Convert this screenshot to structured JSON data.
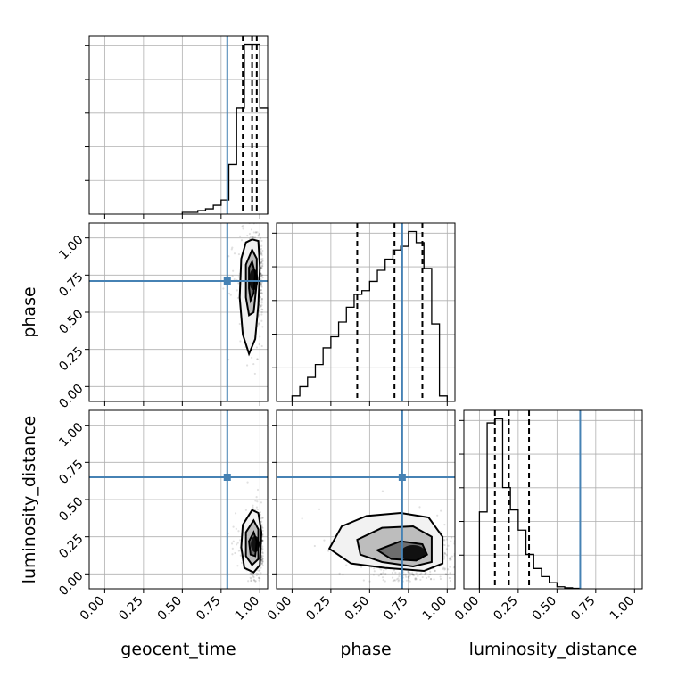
{
  "figure": {
    "type": "corner-plot"
  },
  "parameters": [
    "geocent_time",
    "phase",
    "luminosity_distance"
  ],
  "axis_labels": {
    "geocent_time": "geocent_time",
    "phase": "phase",
    "luminosity_distance": "luminosity_distance"
  },
  "tick_labels": [
    "0.00",
    "0.25",
    "0.50",
    "0.75",
    "1.00"
  ],
  "colors": {
    "truth": "#4682b4",
    "hist": "#000000",
    "grid": "#b0b0b0"
  },
  "truths": {
    "geocent_time": 0.79,
    "phase": 0.71,
    "luminosity_distance": 0.65
  },
  "chart_data": [
    {
      "type": "histogram",
      "parameter": "geocent_time",
      "xlim": [
        -0.1,
        1.05
      ],
      "grid": true,
      "bin_edges": [
        0.5,
        0.55,
        0.6,
        0.65,
        0.7,
        0.75,
        0.8,
        0.85,
        0.9,
        0.95,
        1.0,
        1.05
      ],
      "counts": [
        0.5,
        0.5,
        1.0,
        1.5,
        2.5,
        4.0,
        14.0,
        30.0,
        48.0,
        48.0,
        30.0
      ],
      "quantiles": [
        0.89,
        0.95,
        0.98
      ],
      "truth": 0.79
    },
    {
      "type": "histogram",
      "parameter": "phase",
      "xlim": [
        -0.1,
        1.05
      ],
      "grid": true,
      "bin_edges": [
        0.0,
        0.05,
        0.1,
        0.15,
        0.2,
        0.25,
        0.3,
        0.35,
        0.4,
        0.45,
        0.5,
        0.55,
        0.6,
        0.65,
        0.7,
        0.75,
        0.8,
        0.85,
        0.9,
        0.95,
        1.0
      ],
      "counts": [
        0.3,
        0.8,
        1.3,
        2.0,
        2.9,
        3.5,
        4.3,
        5.1,
        5.8,
        6.0,
        6.5,
        7.1,
        7.7,
        8.2,
        8.4,
        9.2,
        8.6,
        7.2,
        4.2,
        0.3
      ],
      "quantiles": [
        0.42,
        0.66,
        0.84
      ],
      "truth": 0.71
    },
    {
      "type": "histogram",
      "parameter": "luminosity_distance",
      "xlim": [
        -0.1,
        1.05
      ],
      "grid": true,
      "bin_edges": [
        0.0,
        0.05,
        0.1,
        0.15,
        0.2,
        0.25,
        0.3,
        0.35,
        0.4,
        0.45,
        0.5,
        0.55,
        0.6,
        0.65
      ],
      "counts": [
        3.8,
        8.2,
        8.4,
        5.0,
        3.9,
        2.9,
        1.7,
        1.0,
        0.6,
        0.3,
        0.1,
        0.05,
        0.02
      ],
      "quantiles": [
        0.1,
        0.19,
        0.32
      ],
      "truth": 0.65
    },
    {
      "type": "scatter-contour",
      "x_parameter": "geocent_time",
      "y_parameter": "phase",
      "xlim": [
        -0.1,
        1.05
      ],
      "ylim": [
        -0.1,
        1.1
      ],
      "grid": true,
      "density_center": [
        0.96,
        0.72
      ],
      "contour_levels": [
        [
          [
            0.95,
            0.99
          ],
          [
            0.99,
            0.98
          ],
          [
            1.0,
            0.8
          ],
          [
            0.99,
            0.55
          ],
          [
            0.97,
            0.32
          ],
          [
            0.93,
            0.22
          ],
          [
            0.89,
            0.35
          ],
          [
            0.87,
            0.6
          ],
          [
            0.88,
            0.86
          ],
          [
            0.91,
            0.97
          ]
        ],
        [
          [
            0.95,
            0.92
          ],
          [
            0.98,
            0.86
          ],
          [
            0.98,
            0.7
          ],
          [
            0.96,
            0.5
          ],
          [
            0.93,
            0.48
          ],
          [
            0.91,
            0.6
          ],
          [
            0.91,
            0.82
          ]
        ],
        [
          [
            0.95,
            0.84
          ],
          [
            0.97,
            0.76
          ],
          [
            0.96,
            0.63
          ],
          [
            0.94,
            0.58
          ],
          [
            0.93,
            0.66
          ],
          [
            0.93,
            0.8
          ]
        ]
      ],
      "truth": [
        0.79,
        0.71
      ]
    },
    {
      "type": "scatter-contour",
      "x_parameter": "geocent_time",
      "y_parameter": "luminosity_distance",
      "xlim": [
        -0.1,
        1.05
      ],
      "ylim": [
        -0.1,
        1.1
      ],
      "grid": true,
      "density_center": [
        0.97,
        0.2
      ],
      "contour_levels": [
        [
          [
            0.95,
            0.43
          ],
          [
            0.99,
            0.41
          ],
          [
            1.01,
            0.28
          ],
          [
            1.0,
            0.06
          ],
          [
            0.96,
            0.01
          ],
          [
            0.9,
            0.04
          ],
          [
            0.88,
            0.18
          ],
          [
            0.89,
            0.33
          ]
        ],
        [
          [
            0.96,
            0.36
          ],
          [
            0.99,
            0.3
          ],
          [
            0.99,
            0.1
          ],
          [
            0.95,
            0.06
          ],
          [
            0.91,
            0.12
          ],
          [
            0.91,
            0.28
          ]
        ],
        [
          [
            0.96,
            0.28
          ],
          [
            0.98,
            0.22
          ],
          [
            0.97,
            0.12
          ],
          [
            0.94,
            0.13
          ],
          [
            0.93,
            0.22
          ]
        ]
      ],
      "truth": [
        0.79,
        0.65
      ]
    },
    {
      "type": "scatter-contour",
      "x_parameter": "phase",
      "y_parameter": "luminosity_distance",
      "xlim": [
        -0.1,
        1.05
      ],
      "ylim": [
        -0.1,
        1.1
      ],
      "grid": true,
      "density_center": [
        0.78,
        0.14
      ],
      "contour_levels": [
        [
          [
            0.32,
            0.32
          ],
          [
            0.48,
            0.39
          ],
          [
            0.7,
            0.41
          ],
          [
            0.88,
            0.38
          ],
          [
            0.97,
            0.25
          ],
          [
            0.97,
            0.07
          ],
          [
            0.85,
            0.02
          ],
          [
            0.6,
            0.04
          ],
          [
            0.38,
            0.07
          ],
          [
            0.24,
            0.17
          ]
        ],
        [
          [
            0.42,
            0.23
          ],
          [
            0.58,
            0.31
          ],
          [
            0.78,
            0.32
          ],
          [
            0.9,
            0.25
          ],
          [
            0.9,
            0.08
          ],
          [
            0.78,
            0.05
          ],
          [
            0.58,
            0.08
          ],
          [
            0.44,
            0.13
          ]
        ],
        [
          [
            0.55,
            0.16
          ],
          [
            0.7,
            0.22
          ],
          [
            0.84,
            0.2
          ],
          [
            0.87,
            0.13
          ],
          [
            0.8,
            0.09
          ],
          [
            0.64,
            0.1
          ]
        ]
      ],
      "truth": [
        0.71,
        0.65
      ]
    }
  ]
}
